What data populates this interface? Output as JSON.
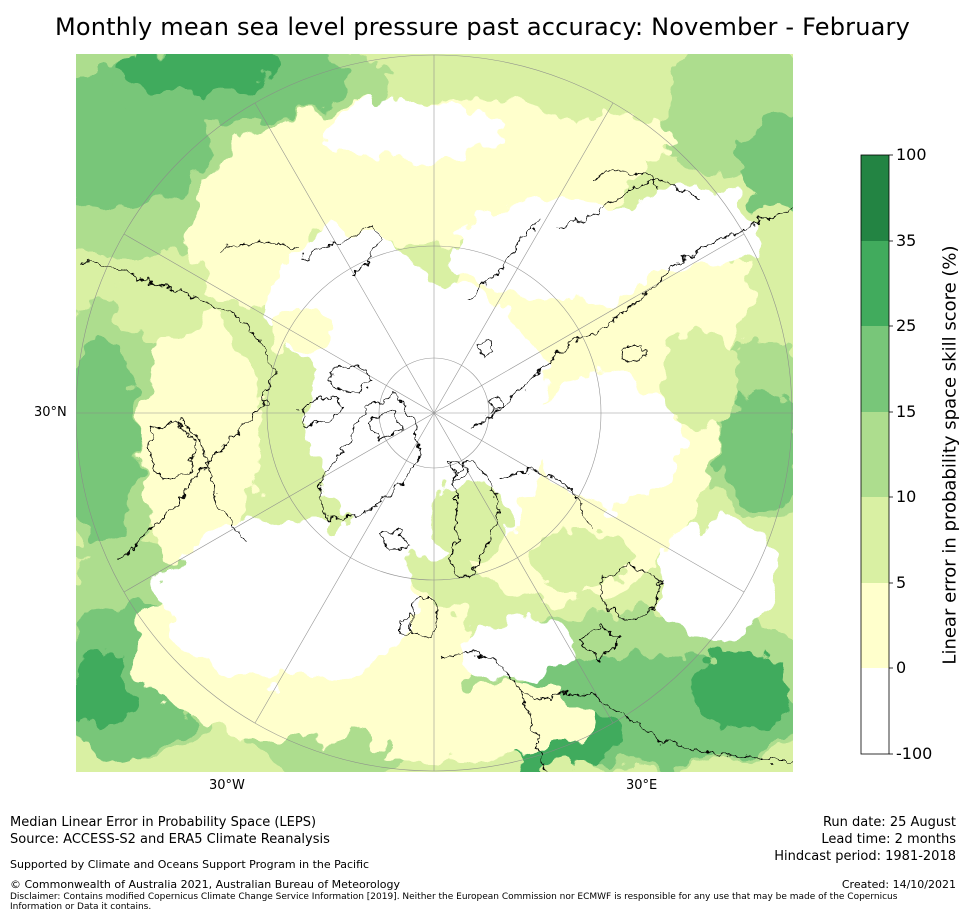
{
  "title": "Monthly mean sea level pressure past accuracy: November - February",
  "map": {
    "projection": "north-polar-stereographic",
    "graticule_labels": {
      "left": "30°N",
      "bottom_left": "30°W",
      "bottom_right": "30°E"
    }
  },
  "colorbar": {
    "label": "Linear error in probability space skill score (%)",
    "ticks": [
      "-100",
      "0",
      "5",
      "10",
      "15",
      "25",
      "35",
      "100"
    ],
    "bins": [
      {
        "from": "-100",
        "to": "0",
        "color": "#ffffff"
      },
      {
        "from": "0",
        "to": "5",
        "color": "#ffffcc"
      },
      {
        "from": "5",
        "to": "10",
        "color": "#d9f0a3"
      },
      {
        "from": "10",
        "to": "15",
        "color": "#addd8e"
      },
      {
        "from": "15",
        "to": "25",
        "color": "#78c679"
      },
      {
        "from": "25",
        "to": "35",
        "color": "#41ab5d"
      },
      {
        "from": "35",
        "to": "100",
        "color": "#238443"
      }
    ]
  },
  "footer": {
    "left_line1": "Median Linear Error in Probability Space (LEPS)",
    "left_line2": "Source: ACCESS-S2 and ERA5 Climate Reanalysis",
    "supported": "Supported by Climate and Oceans Support Program in the Pacific",
    "copyright": "© Commonwealth of Australia 2021, Australian Bureau of Meteorology",
    "disclaimer": "Disclaimer: Contains modified Copernicus Climate Change Service Information [2019]. Neither the European Commission nor ECMWF is responsible for any use that may be made of the Copernicus Information or Data it contains.",
    "run_date": "Run date: 25 August",
    "lead_time": "Lead time: 2 months",
    "hindcast": "Hindcast period: 1981-2018",
    "created": "Created: 14/10/2021"
  }
}
